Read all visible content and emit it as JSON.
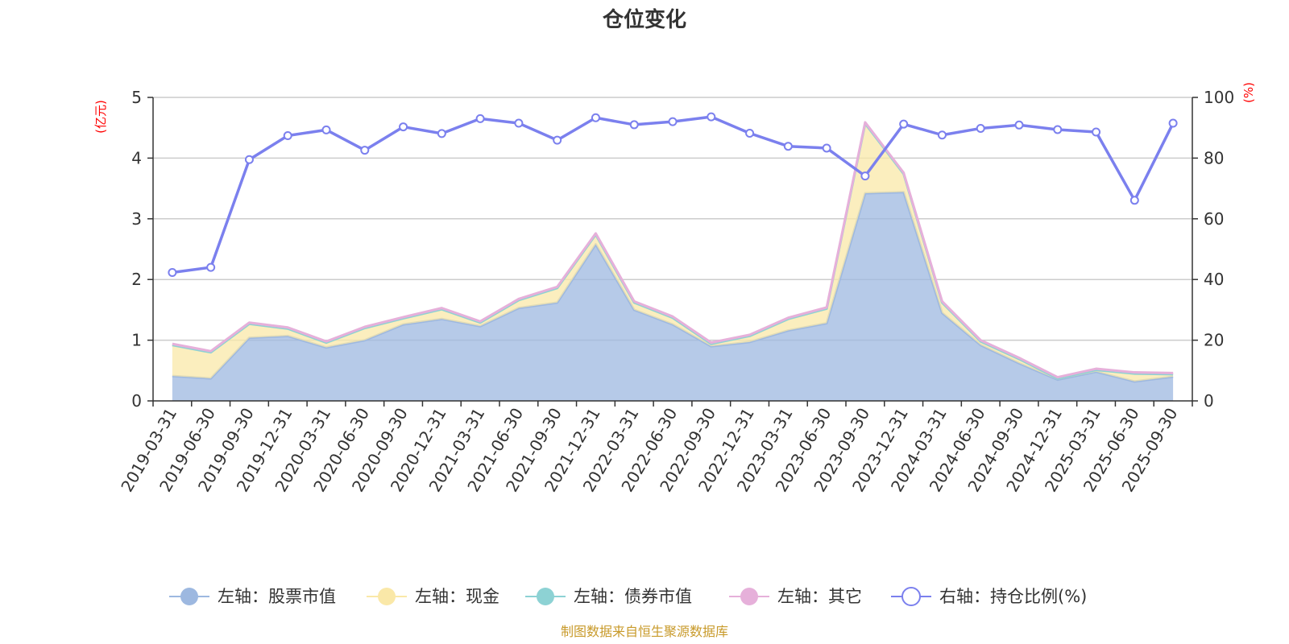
{
  "title": "仓位变化",
  "source": "制图数据来自恒生聚源数据库",
  "chart_data": {
    "type": "area",
    "title": "仓位变化",
    "categories": [
      "2019-03-31",
      "2019-06-30",
      "2019-09-30",
      "2019-12-31",
      "2020-03-31",
      "2020-06-30",
      "2020-09-30",
      "2020-12-31",
      "2021-03-31",
      "2021-06-30",
      "2021-09-30",
      "2021-12-31",
      "2022-03-31",
      "2022-06-30",
      "2022-09-30",
      "2022-12-31",
      "2023-03-31",
      "2023-06-30",
      "2023-09-30",
      "2023-12-31",
      "2024-03-31",
      "2024-06-30",
      "2024-09-30",
      "2024-12-31",
      "2025-03-31",
      "2025-06-30",
      "2025-09-30"
    ],
    "left_axis": {
      "unit": "(亿元)",
      "ylim": [
        0,
        5
      ],
      "ticks": [
        "0",
        "1",
        "2",
        "3",
        "4",
        "5"
      ]
    },
    "right_axis": {
      "unit": "(%)",
      "ylim": [
        0,
        100
      ],
      "ticks": [
        "0",
        "20",
        "40",
        "60",
        "80",
        "100"
      ]
    },
    "series": [
      {
        "name": "左轴：股票市值",
        "axis": "left",
        "color": "#9db8e0",
        "values": [
          0.41,
          0.37,
          1.04,
          1.07,
          0.88,
          1.0,
          1.26,
          1.35,
          1.23,
          1.53,
          1.62,
          2.58,
          1.5,
          1.26,
          0.9,
          0.97,
          1.16,
          1.28,
          3.42,
          3.44,
          1.45,
          0.92,
          0.62,
          0.35,
          0.48,
          0.32,
          0.4
        ]
      },
      {
        "name": "左轴：现金",
        "axis": "left",
        "color": "#fae8a8",
        "values": [
          0.51,
          0.43,
          0.23,
          0.12,
          0.08,
          0.2,
          0.1,
          0.16,
          0.06,
          0.13,
          0.24,
          0.16,
          0.12,
          0.11,
          0.04,
          0.1,
          0.19,
          0.24,
          1.15,
          0.3,
          0.17,
          0.06,
          0.07,
          0.02,
          0.03,
          0.13,
          0.04
        ]
      },
      {
        "name": "左轴：债券市值",
        "axis": "left",
        "color": "#8dd2d4",
        "values": [
          0,
          0,
          0,
          0,
          0,
          0,
          0,
          0,
          0,
          0,
          0,
          0,
          0,
          0,
          0,
          0,
          0,
          0,
          0,
          0,
          0,
          0,
          0,
          0,
          0,
          0,
          0
        ]
      },
      {
        "name": "左轴：其它",
        "axis": "left",
        "color": "#e6b0da",
        "values": [
          0.02,
          0.02,
          0.02,
          0.02,
          0.02,
          0.02,
          0.02,
          0.02,
          0.02,
          0.02,
          0.02,
          0.02,
          0.02,
          0.02,
          0.02,
          0.02,
          0.02,
          0.02,
          0.02,
          0.02,
          0.02,
          0.02,
          0.02,
          0.02,
          0.02,
          0.02,
          0.02
        ]
      },
      {
        "name": "右轴：持仓比例(%)",
        "axis": "right",
        "color": "#7b80ee",
        "type": "line",
        "values": [
          42.3,
          44.0,
          79.5,
          87.4,
          89.3,
          82.6,
          90.3,
          88.1,
          93.0,
          91.5,
          85.9,
          93.3,
          91.0,
          92.0,
          93.6,
          88.2,
          83.9,
          83.3,
          74.1,
          91.2,
          87.6,
          89.8,
          90.9,
          89.4,
          88.6,
          66.1,
          91.5
        ]
      }
    ]
  },
  "legend": [
    {
      "label": "左轴：股票市值",
      "color": "#9db8e0",
      "style": "filled"
    },
    {
      "label": "左轴：现金",
      "color": "#fae8a8",
      "style": "filled"
    },
    {
      "label": "左轴：债券市值",
      "color": "#8dd2d4",
      "style": "filled"
    },
    {
      "label": "左轴：其它",
      "color": "#e6b0da",
      "style": "filled"
    },
    {
      "label": "右轴：持仓比例(%)",
      "color": "#7b80ee",
      "style": "hollow"
    }
  ]
}
